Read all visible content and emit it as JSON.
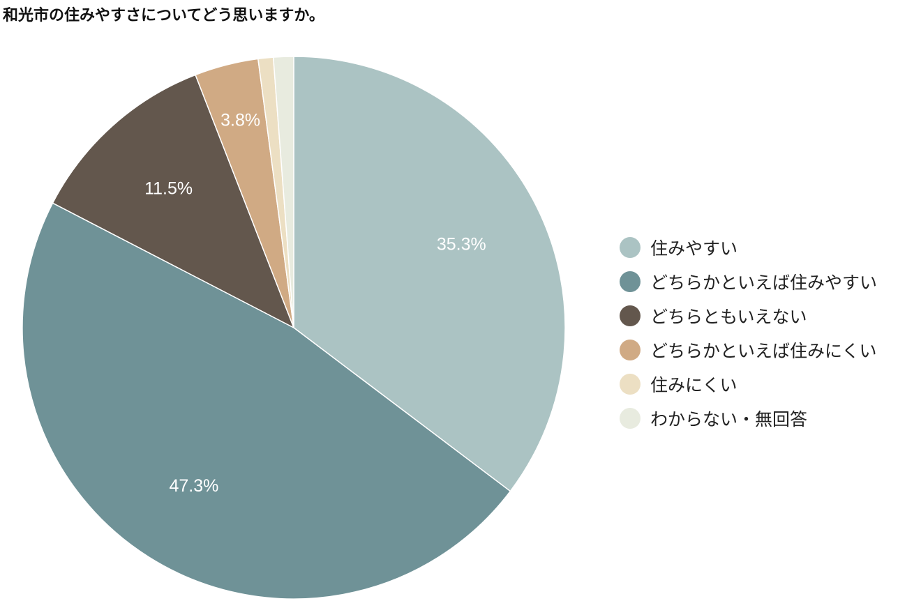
{
  "chart_data": {
    "type": "pie",
    "title": "和光市の住みやすさについてどう思いますか。",
    "categories": [
      "住みやすい",
      "どちらかといえば住みやすい",
      "どちらともいえない",
      "どちらかといえば住みにくい",
      "住みにくい",
      "わからない・無回答"
    ],
    "values": [
      35.3,
      47.3,
      11.5,
      3.8,
      0.9,
      1.2
    ],
    "labels": [
      "35.3%",
      "47.3%",
      "11.5%",
      "3.8%",
      "",
      ""
    ],
    "colors": [
      "#abc3c3",
      "#6f9297",
      "#63574d",
      "#d0aa84",
      "#ecdfc3",
      "#e8ebdf"
    ],
    "start": "12 o'clock",
    "direction": "clockwise",
    "legend": "right"
  }
}
